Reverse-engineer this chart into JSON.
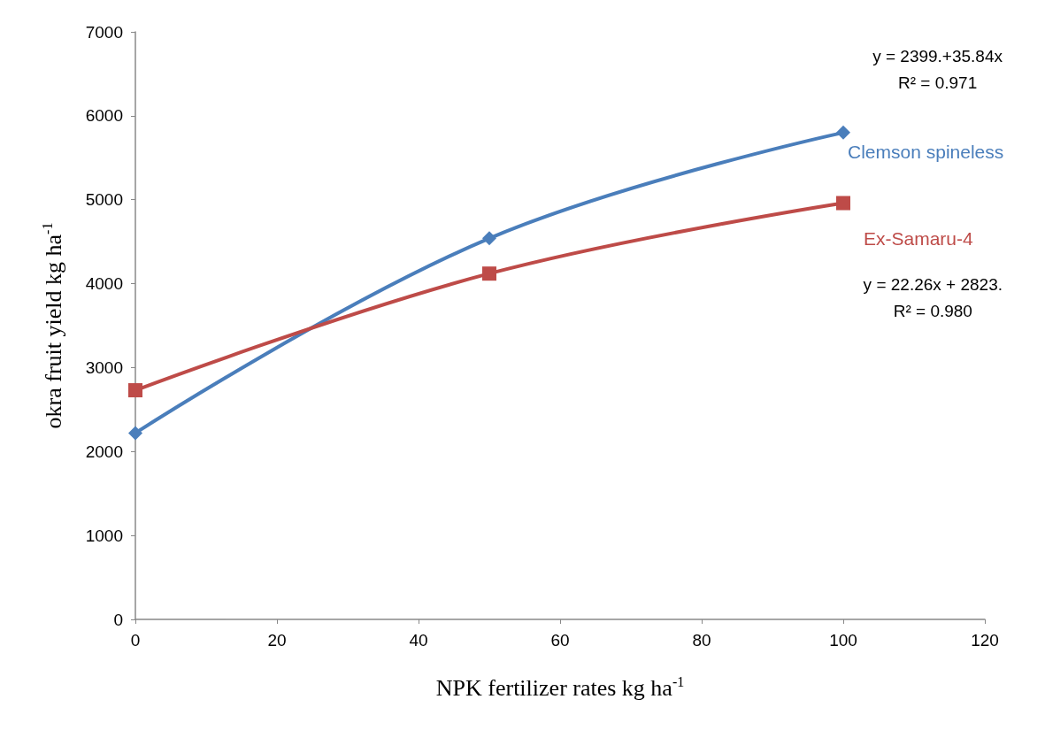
{
  "chart_data": {
    "type": "line",
    "xlabel": "NPK fertilizer rates kg ha$^{-1}$",
    "ylabel": "okra fruit yield kg ha$^{-1}$",
    "x": [
      0,
      50,
      100
    ],
    "series": [
      {
        "name": "Clemson spineless",
        "color": "#4a7ebb",
        "marker": "diamond",
        "values": [
          2220,
          4540,
          5800
        ]
      },
      {
        "name": "Ex-Samaru-4",
        "color": "#be4b48",
        "marker": "square",
        "values": [
          2730,
          4120,
          4960
        ]
      }
    ],
    "xlim": [
      0,
      120
    ],
    "xticks": [
      0,
      20,
      40,
      60,
      80,
      100,
      120
    ],
    "ylim": [
      0,
      7000
    ],
    "yticks": [
      0,
      1000,
      2000,
      3000,
      4000,
      5000,
      6000,
      7000
    ],
    "grid": false,
    "legend": false,
    "annotations": [
      "y = 2399.+35.84x\nR² = 0.971",
      "y = 22.26x + 2823.\nR² = 0.980"
    ]
  }
}
